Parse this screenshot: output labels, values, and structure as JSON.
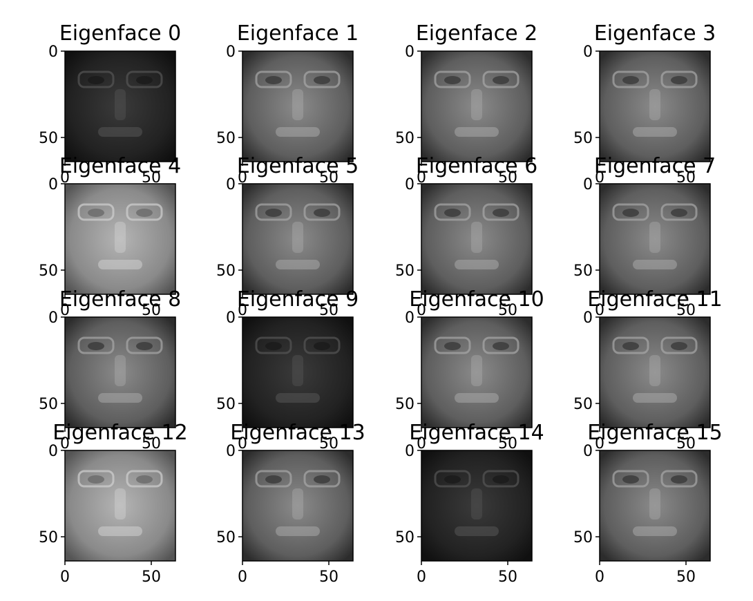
{
  "figure": {
    "background": "#ffffff",
    "colormap": "gray",
    "rows": 4,
    "cols": 4
  },
  "axes": {
    "xlim": [
      0,
      64
    ],
    "ylim": [
      0,
      64
    ],
    "xticks": [
      "0",
      "50"
    ],
    "yticks": [
      "0",
      "50"
    ],
    "xtick_values": [
      0,
      50
    ],
    "ytick_values": [
      0,
      50
    ]
  },
  "panels": [
    {
      "title": "Eigenface 0",
      "tone": "dark"
    },
    {
      "title": "Eigenface 1",
      "tone": "mid"
    },
    {
      "title": "Eigenface 2",
      "tone": "mid"
    },
    {
      "title": "Eigenface 3",
      "tone": "mid"
    },
    {
      "title": "Eigenface 4",
      "tone": "light"
    },
    {
      "title": "Eigenface 5",
      "tone": "mid"
    },
    {
      "title": "Eigenface 6",
      "tone": "mid"
    },
    {
      "title": "Eigenface 7",
      "tone": "mid"
    },
    {
      "title": "Eigenface 8",
      "tone": "mid"
    },
    {
      "title": "Eigenface 9",
      "tone": "dark"
    },
    {
      "title": "Eigenface 10",
      "tone": "mid"
    },
    {
      "title": "Eigenface 11",
      "tone": "mid"
    },
    {
      "title": "Eigenface 12",
      "tone": "light"
    },
    {
      "title": "Eigenface 13",
      "tone": "mid"
    },
    {
      "title": "Eigenface 14",
      "tone": "dark"
    },
    {
      "title": "Eigenface 15",
      "tone": "mid"
    }
  ]
}
